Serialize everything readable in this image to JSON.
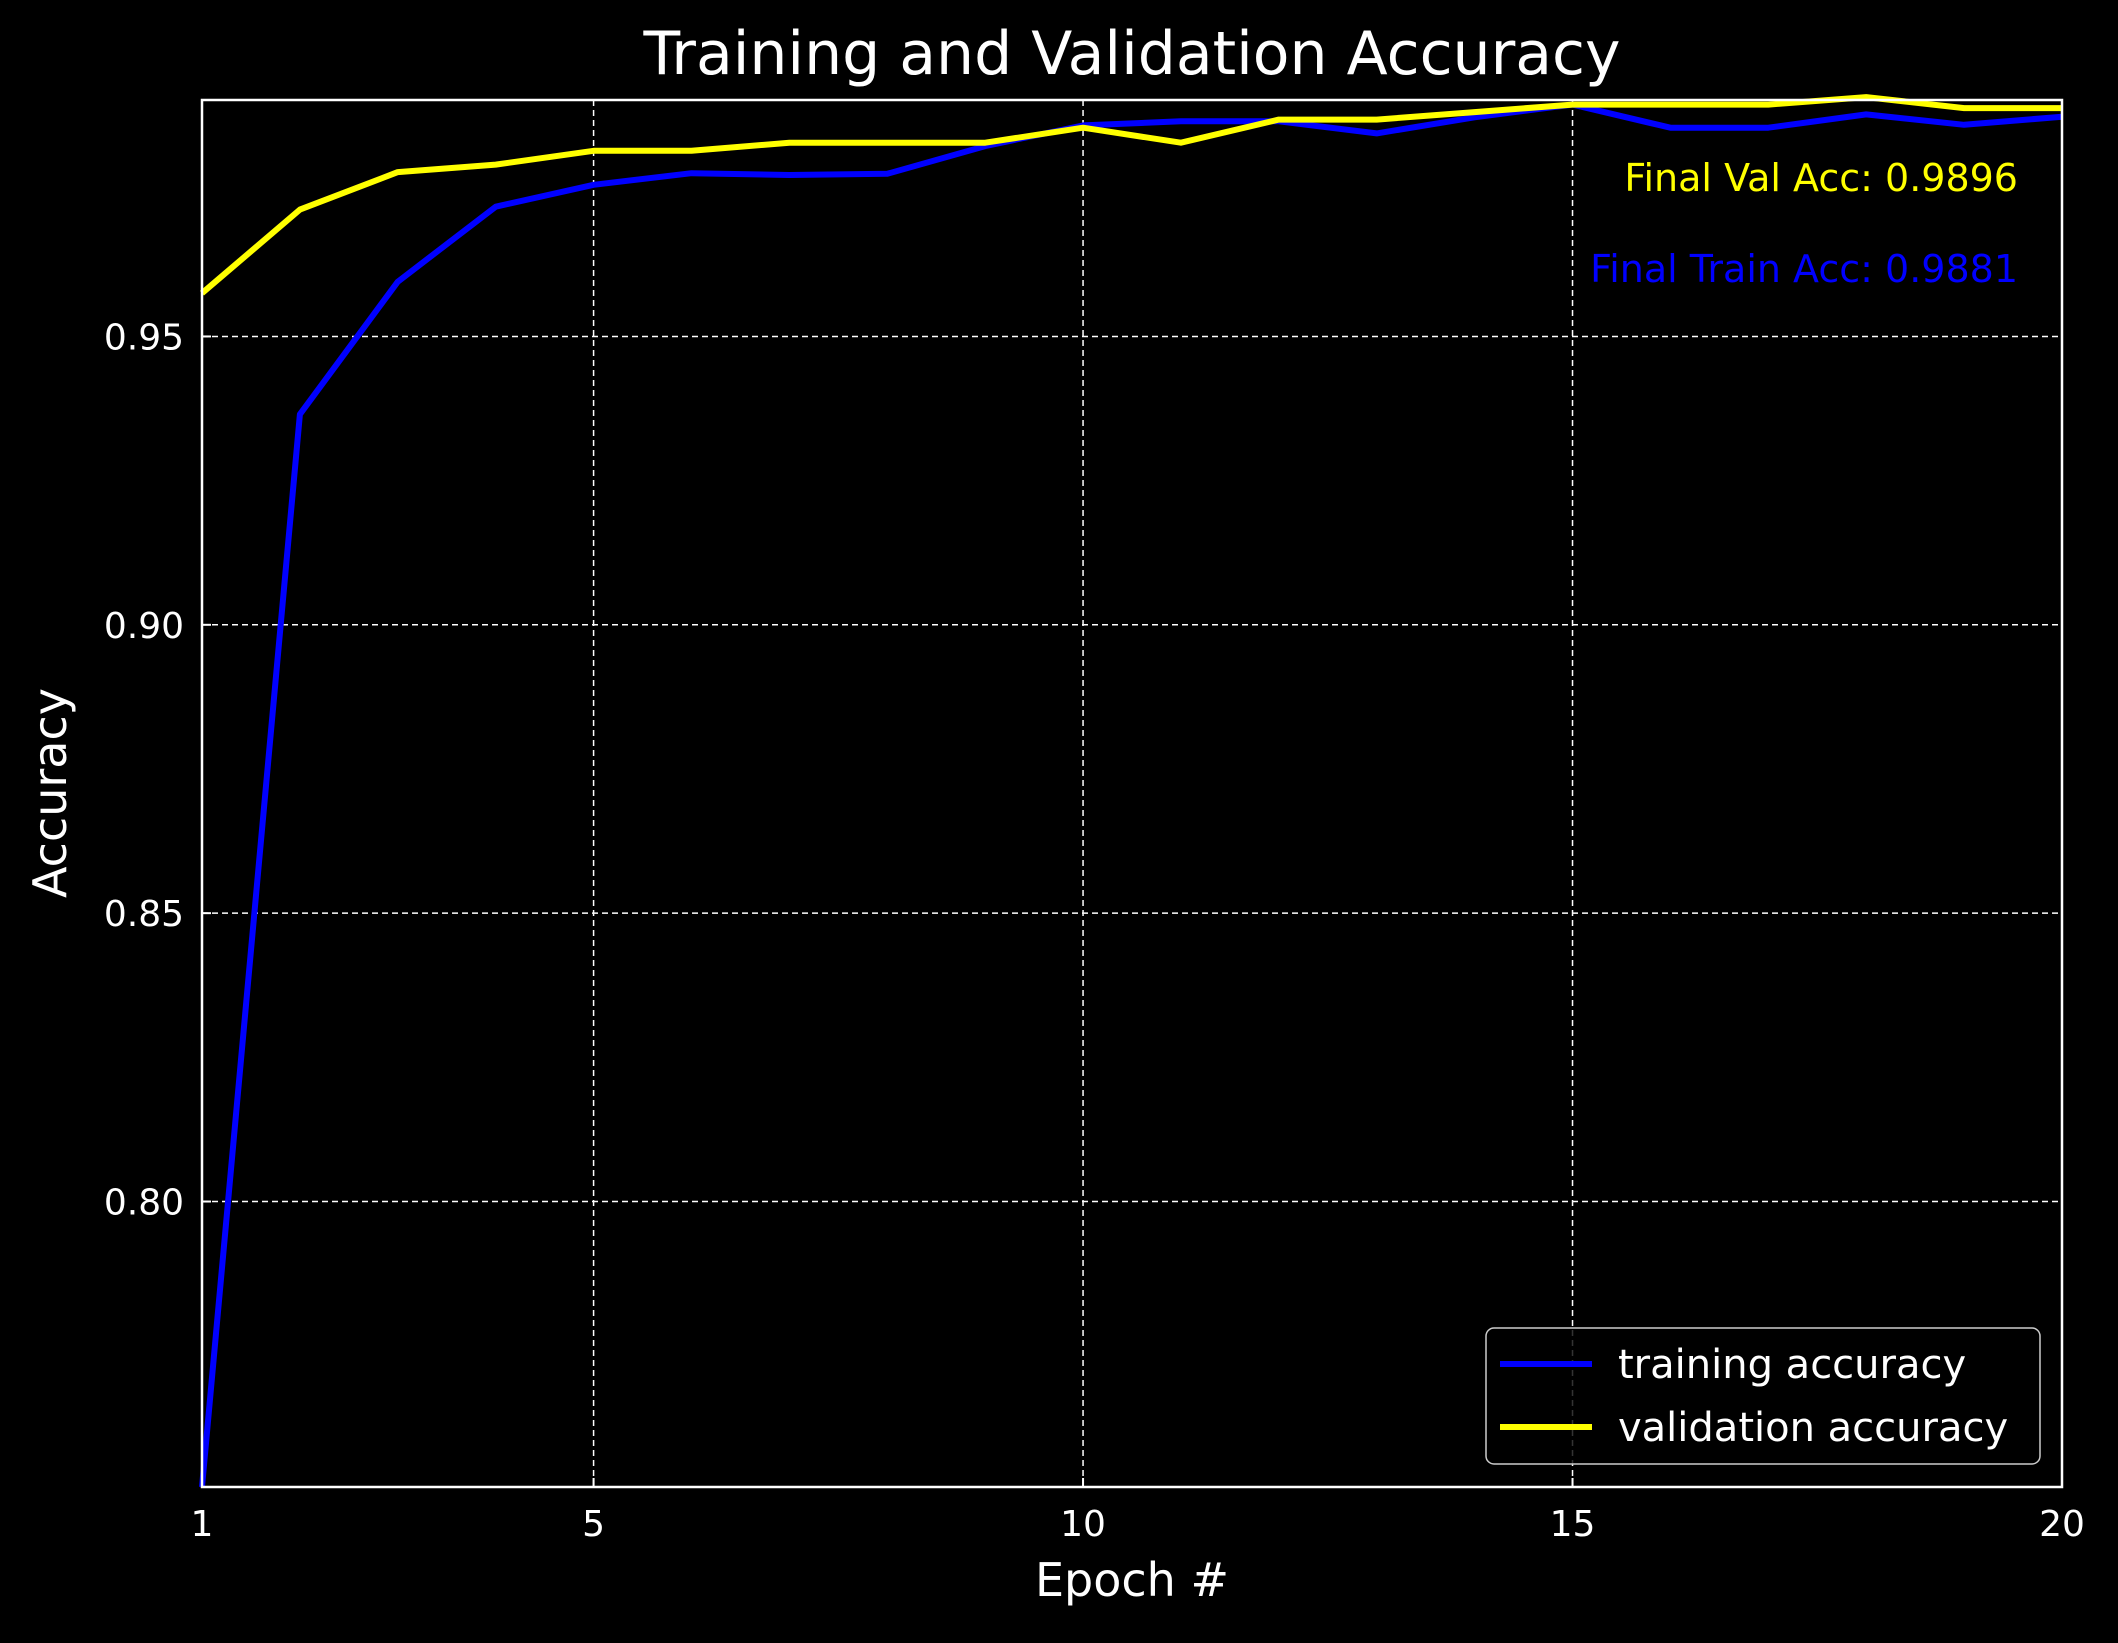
{
  "colors": {
    "background": "#000000",
    "foreground": "#ffffff",
    "training": "#0000ff",
    "validation": "#ffff00"
  },
  "chart_data": {
    "type": "line",
    "title": "Training and Validation Accuracy",
    "xlabel": "Epoch #",
    "ylabel": "Accuracy",
    "xlim": [
      1,
      20
    ],
    "ylim": [
      0.7505,
      0.991
    ],
    "xticks": [
      1,
      5,
      10,
      15,
      20
    ],
    "xtick_labels": [
      "1",
      "5",
      "10",
      "15",
      "20"
    ],
    "yticks": [
      0.8,
      0.85,
      0.9,
      0.95
    ],
    "ytick_labels": [
      "0.80",
      "0.85",
      "0.90",
      "0.95"
    ],
    "grid": true,
    "legend_position": "lower-right",
    "x": [
      1,
      2,
      3,
      4,
      5,
      6,
      7,
      8,
      9,
      10,
      11,
      12,
      13,
      14,
      15,
      16,
      17,
      18,
      19,
      20
    ],
    "series": [
      {
        "name": "training accuracy",
        "color": "#0000ff",
        "values": [
          0.7505,
          0.9365,
          0.9595,
          0.9725,
          0.9763,
          0.9783,
          0.978,
          0.9782,
          0.983,
          0.9866,
          0.9873,
          0.9873,
          0.9852,
          0.988,
          0.9902,
          0.9862,
          0.9862,
          0.9885,
          0.9867,
          0.9881
        ]
      },
      {
        "name": "validation accuracy",
        "color": "#ffff00",
        "values": [
          0.9575,
          0.972,
          0.9785,
          0.9798,
          0.9822,
          0.9822,
          0.9836,
          0.9836,
          0.9836,
          0.9862,
          0.9836,
          0.9876,
          0.9876,
          0.9889,
          0.9902,
          0.9902,
          0.9902,
          0.9915,
          0.9896,
          0.9896
        ]
      }
    ],
    "annotations": [
      {
        "text": "Final Val Acc: 0.9896",
        "color": "#ffff00"
      },
      {
        "text": "Final Train Acc: 0.9881",
        "color": "#0000ff"
      }
    ]
  }
}
